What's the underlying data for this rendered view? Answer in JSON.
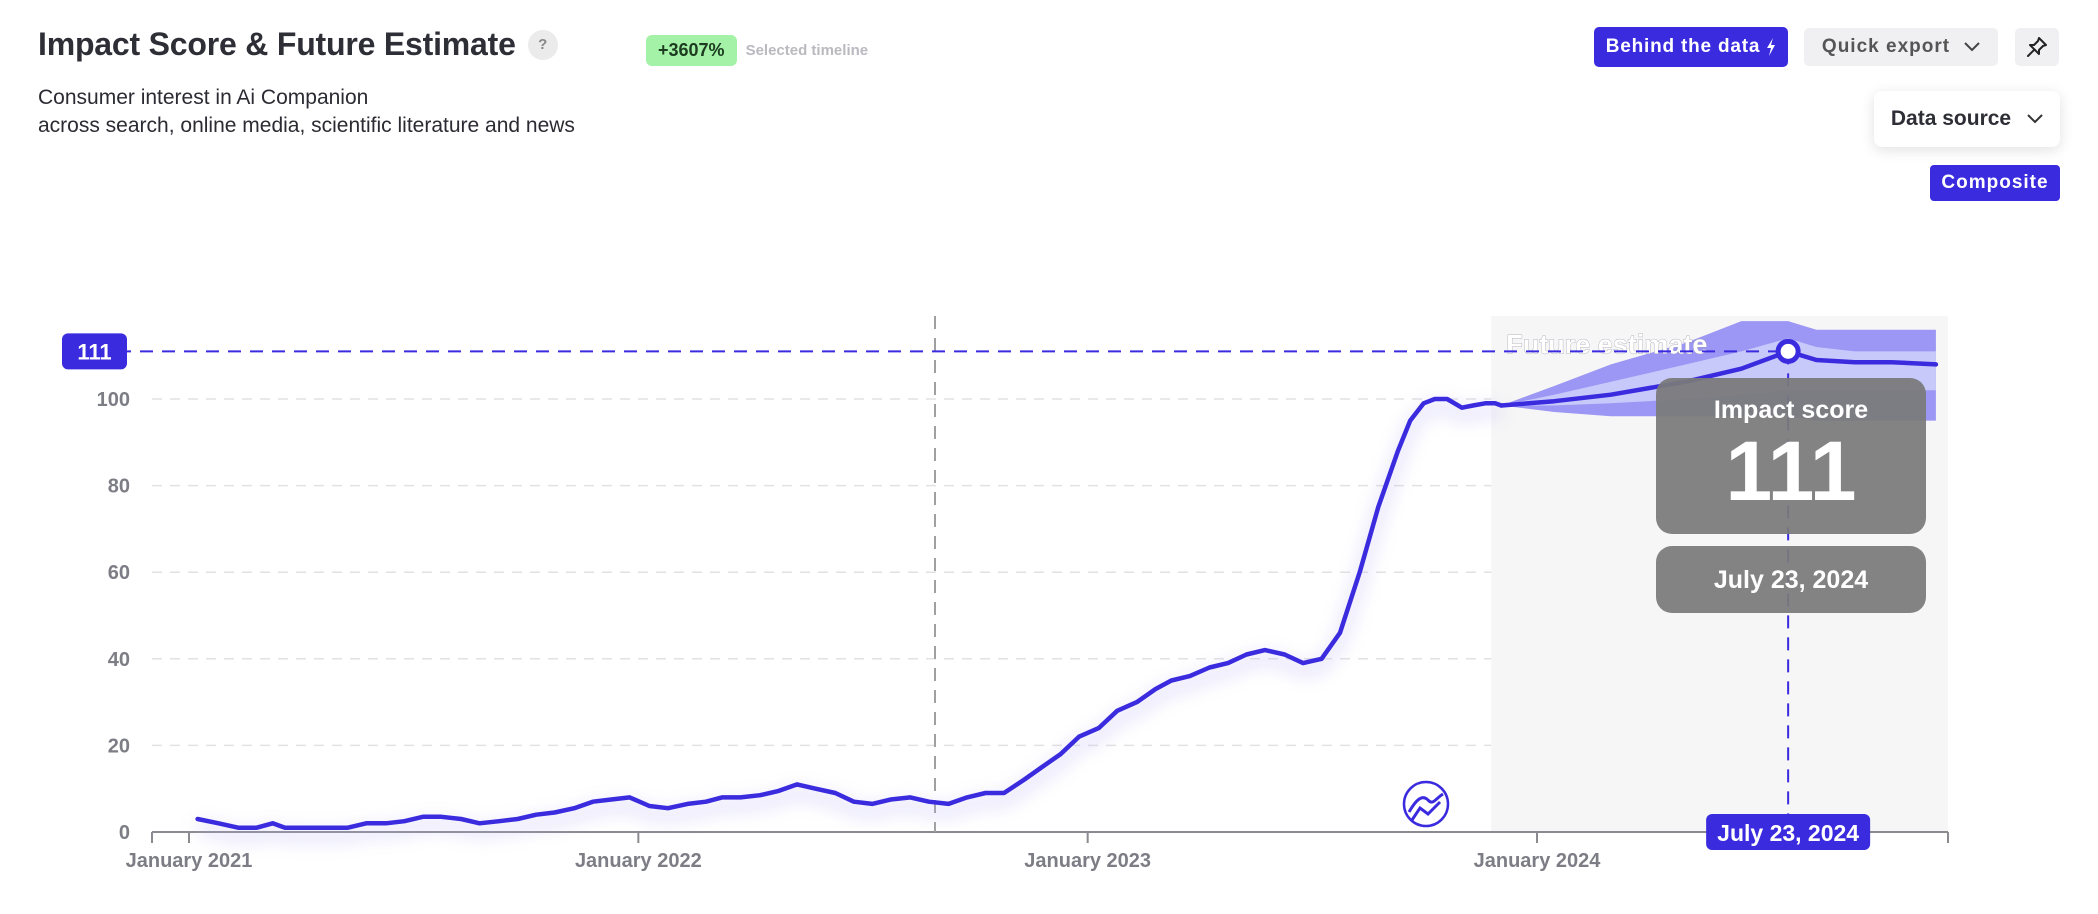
{
  "header": {
    "title": "Impact Score & Future Estimate",
    "help": "?",
    "growth_badge": "+3607%",
    "growth_caption": "Selected timeline",
    "subtitle_line1": "Consumer interest in Ai Companion",
    "subtitle_line2": "across search, online media, scientific literature and news"
  },
  "toolbar": {
    "behind_label": "Behind the data",
    "export_label": "Quick export",
    "data_source_label": "Data source",
    "data_source_value": "Composite"
  },
  "colors": {
    "accent": "#3b2bdf",
    "forecast_band_outer": "#9c96f4",
    "forecast_band_inner": "#c7c9fb",
    "growth_badge_bg": "#a4f2a8",
    "tooltip_bg": "#7a7a7a"
  },
  "chart_data": {
    "type": "line",
    "ylim": [
      0,
      116
    ],
    "y_ticks": [
      0,
      20,
      40,
      60,
      80,
      100
    ],
    "x_ticks": [
      "January 2021",
      "January 2022",
      "January 2023",
      "January 2024"
    ],
    "marker_label": "111",
    "future_label": "Future estimate",
    "tooltip": {
      "title": "Impact score",
      "value": "111",
      "date": "July 23, 2024"
    },
    "cursor_date_label": "July 23, 2024",
    "series": [
      {
        "name": "Impact score",
        "x": [
          "2021-01-08",
          "2021-01-25",
          "2021-02-10",
          "2021-02-25",
          "2021-03-10",
          "2021-03-20",
          "2021-04-01",
          "2021-04-20",
          "2021-05-10",
          "2021-05-25",
          "2021-06-10",
          "2021-06-25",
          "2021-07-10",
          "2021-07-25",
          "2021-08-10",
          "2021-08-25",
          "2021-09-10",
          "2021-09-25",
          "2021-10-10",
          "2021-10-25",
          "2021-11-10",
          "2021-11-25",
          "2021-12-10",
          "2021-12-25",
          "2022-01-10",
          "2022-01-25",
          "2022-02-10",
          "2022-02-25",
          "2022-03-10",
          "2022-03-25",
          "2022-04-10",
          "2022-04-25",
          "2022-05-10",
          "2022-05-25",
          "2022-06-10",
          "2022-06-25",
          "2022-07-10",
          "2022-07-25",
          "2022-08-10",
          "2022-08-25",
          "2022-09-10",
          "2022-09-25",
          "2022-10-10",
          "2022-10-25",
          "2022-11-10",
          "2022-11-25",
          "2022-12-10",
          "2022-12-25",
          "2023-01-10",
          "2023-01-25",
          "2023-02-10",
          "2023-02-25",
          "2023-03-10",
          "2023-03-25",
          "2023-04-10",
          "2023-04-25",
          "2023-05-10",
          "2023-05-25",
          "2023-06-10",
          "2023-06-25",
          "2023-07-10",
          "2023-07-25",
          "2023-08-10",
          "2023-08-25",
          "2023-09-10",
          "2023-09-20",
          "2023-10-01",
          "2023-10-10",
          "2023-10-20",
          "2023-11-01",
          "2023-11-10",
          "2023-11-20",
          "2023-11-28",
          "2023-12-03"
        ],
        "y": [
          3,
          2,
          1,
          1,
          2,
          1,
          1,
          1,
          1,
          2,
          2,
          2.5,
          3.5,
          3.5,
          3,
          2,
          2.5,
          3,
          4,
          4.5,
          5.5,
          7,
          7.5,
          8,
          6,
          5.5,
          6.5,
          7,
          8,
          8,
          8.5,
          9.5,
          11,
          10,
          9,
          7,
          6.5,
          7.5,
          8,
          7,
          6.5,
          8,
          9,
          9,
          12,
          15,
          18,
          22,
          24,
          28,
          30,
          33,
          35,
          36,
          38,
          39,
          41,
          42,
          41,
          39,
          40,
          46,
          60,
          75,
          88,
          95,
          99,
          100,
          100,
          98,
          98.5,
          99,
          99,
          98.5
        ]
      },
      {
        "name": "Future estimate",
        "x": [
          "2023-12-03",
          "2024-01-15",
          "2024-03-01",
          "2024-05-01",
          "2024-06-15",
          "2024-07-23",
          "2024-08-15",
          "2024-09-15",
          "2024-10-15",
          "2024-11-20"
        ],
        "y": [
          98.5,
          99.5,
          101,
          104,
          107,
          111,
          109,
          108.5,
          108.5,
          108
        ],
        "upper_inner": [
          98.5,
          101,
          104,
          108,
          111,
          114,
          112,
          111,
          111,
          111
        ],
        "lower_inner": [
          98.5,
          98.5,
          99,
          100,
          101,
          102,
          102,
          102,
          102,
          102
        ],
        "upper_outer": [
          98.5,
          103,
          108,
          113,
          118,
          118,
          116,
          116,
          116,
          116
        ],
        "lower_outer": [
          98.5,
          97,
          96,
          96,
          96,
          96,
          95,
          95,
          95,
          95
        ]
      }
    ]
  }
}
